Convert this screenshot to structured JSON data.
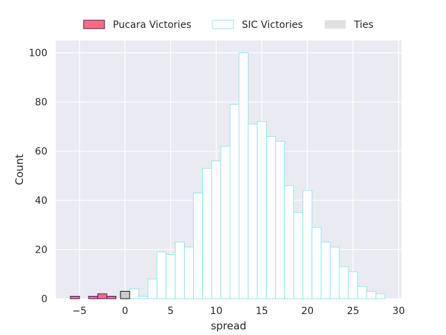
{
  "chart_data": {
    "type": "bar",
    "subtype": "histogram",
    "xlabel": "spread",
    "ylabel": "Count",
    "xlim": [
      -7.6,
      30.3
    ],
    "ylim": [
      0,
      105
    ],
    "xticks": [
      -5,
      0,
      5,
      10,
      15,
      20,
      25,
      30
    ],
    "yticks": [
      0,
      20,
      40,
      60,
      80,
      100
    ],
    "grid": true,
    "legend_position": "top-center",
    "background": "#eaeaf2",
    "series": [
      {
        "name": "Pucara Victories",
        "fill": "#ff6b7d",
        "edge": "#3c1a6e",
        "bins": [
          {
            "x0": -6.0,
            "x1": -5.0,
            "count": 1
          },
          {
            "x0": -4.0,
            "x1": -3.0,
            "count": 1
          },
          {
            "x0": -3.0,
            "x1": -2.0,
            "count": 2
          },
          {
            "x0": -2.0,
            "x1": -1.0,
            "count": 1
          }
        ]
      },
      {
        "name": "SIC Victories",
        "fill": "#ffffff",
        "edge": "#8ee6ee",
        "bins": [
          {
            "x0": 0.5,
            "x1": 1.5,
            "count": 4
          },
          {
            "x0": 1.5,
            "x1": 2.5,
            "count": 1
          },
          {
            "x0": 2.5,
            "x1": 3.5,
            "count": 8
          },
          {
            "x0": 3.5,
            "x1": 4.5,
            "count": 19
          },
          {
            "x0": 4.5,
            "x1": 5.5,
            "count": 18
          },
          {
            "x0": 5.5,
            "x1": 6.5,
            "count": 23
          },
          {
            "x0": 6.5,
            "x1": 7.5,
            "count": 21
          },
          {
            "x0": 7.5,
            "x1": 8.5,
            "count": 43
          },
          {
            "x0": 8.5,
            "x1": 9.5,
            "count": 53
          },
          {
            "x0": 9.5,
            "x1": 10.5,
            "count": 56
          },
          {
            "x0": 10.5,
            "x1": 11.5,
            "count": 62
          },
          {
            "x0": 11.5,
            "x1": 12.5,
            "count": 79
          },
          {
            "x0": 12.5,
            "x1": 13.5,
            "count": 100
          },
          {
            "x0": 13.5,
            "x1": 14.5,
            "count": 71
          },
          {
            "x0": 14.5,
            "x1": 15.5,
            "count": 72
          },
          {
            "x0": 15.5,
            "x1": 16.5,
            "count": 66
          },
          {
            "x0": 16.5,
            "x1": 17.5,
            "count": 64
          },
          {
            "x0": 17.5,
            "x1": 18.5,
            "count": 46
          },
          {
            "x0": 18.5,
            "x1": 19.5,
            "count": 35
          },
          {
            "x0": 19.5,
            "x1": 20.5,
            "count": 44
          },
          {
            "x0": 20.5,
            "x1": 21.5,
            "count": 29
          },
          {
            "x0": 21.5,
            "x1": 22.5,
            "count": 23
          },
          {
            "x0": 22.5,
            "x1": 23.5,
            "count": 21
          },
          {
            "x0": 23.5,
            "x1": 24.5,
            "count": 13
          },
          {
            "x0": 24.5,
            "x1": 25.5,
            "count": 11
          },
          {
            "x0": 25.5,
            "x1": 26.5,
            "count": 5
          },
          {
            "x0": 26.5,
            "x1": 27.5,
            "count": 3
          },
          {
            "x0": 27.5,
            "x1": 28.5,
            "count": 2
          }
        ]
      },
      {
        "name": "Ties",
        "fill": "#cccccc",
        "edge": "#111111",
        "legend_fill": "#e0e0e0",
        "bins": [
          {
            "x0": -0.5,
            "x1": 0.5,
            "count": 3
          }
        ]
      }
    ]
  }
}
